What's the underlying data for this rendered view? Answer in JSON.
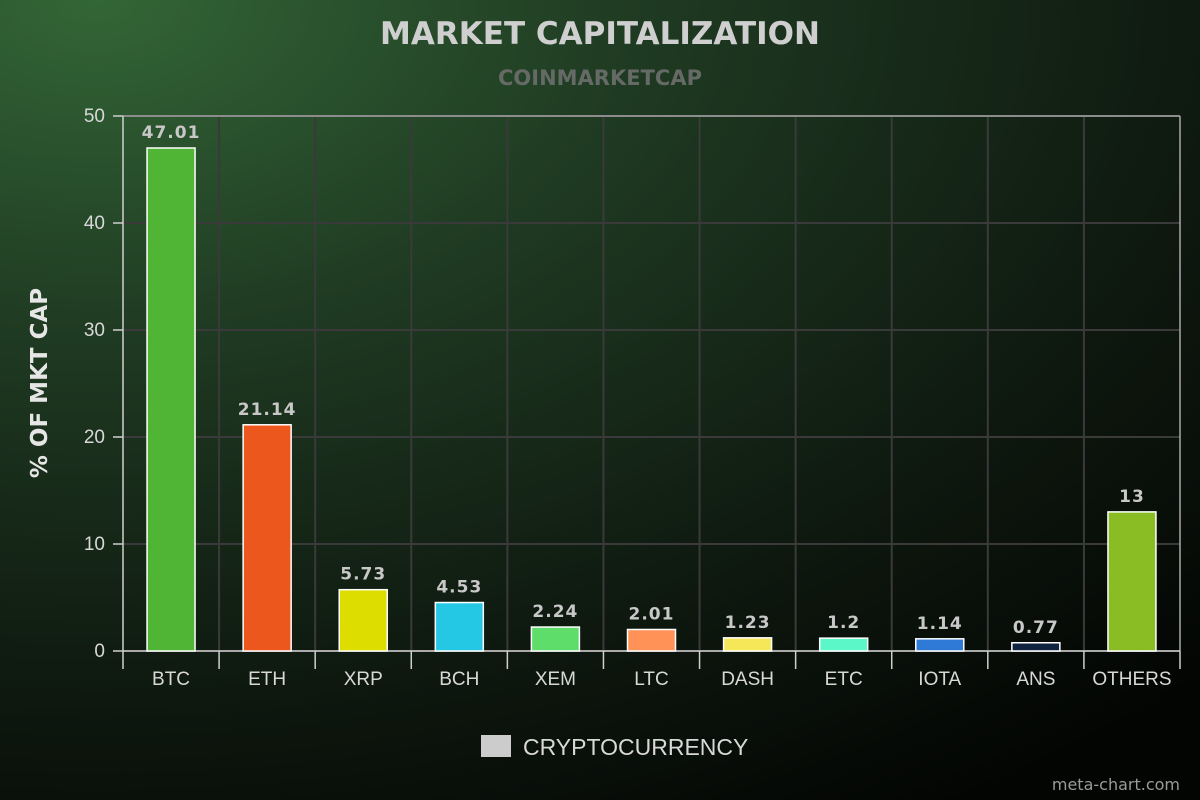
{
  "chart_data": {
    "type": "bar",
    "title": "MARKET CAPITALIZATION",
    "subtitle": "COINMARKETCAP",
    "xlabel": "",
    "ylabel": "% OF MKT CAP",
    "ylim": [
      0,
      50
    ],
    "yticks": [
      0,
      10,
      20,
      30,
      40,
      50
    ],
    "categories": [
      "BTC",
      "ETH",
      "XRP",
      "BCH",
      "XEM",
      "LTC",
      "DASH",
      "ETC",
      "IOTA",
      "ANS",
      "OTHERS"
    ],
    "series": [
      {
        "name": "CRYPTOCURRENCY",
        "values": [
          47.01,
          21.14,
          5.73,
          4.53,
          2.24,
          2.01,
          1.23,
          1.2,
          1.14,
          0.77,
          13
        ],
        "labels": [
          "47.01",
          "21.14",
          "5.73",
          "4.53",
          "2.24",
          "2.01",
          "1.23",
          "1.2",
          "1.14",
          "0.77",
          "13"
        ],
        "colors": [
          "#50b535",
          "#eb571d",
          "#dddd00",
          "#25c8e4",
          "#5fdd6a",
          "#fe9257",
          "#f5e758",
          "#5cf7c8",
          "#2f7ad7",
          "#0f2240",
          "#8abd24"
        ]
      }
    ],
    "grid": true,
    "legend": "bottom",
    "legend_color": "#cccccc"
  },
  "watermark": "meta-chart.com"
}
